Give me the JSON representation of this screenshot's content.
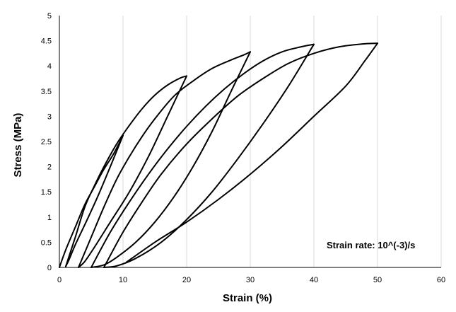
{
  "chart_data": {
    "type": "line",
    "title": "",
    "xlabel": "Strain (%)",
    "ylabel": "Stress (MPa)",
    "xlim": [
      0,
      60
    ],
    "ylim": [
      0,
      5
    ],
    "xticks": [
      "0",
      "10",
      "20",
      "30",
      "40",
      "50",
      "60"
    ],
    "yticks": [
      "0",
      "0.5",
      "1",
      "1.5",
      "2",
      "2.5",
      "3",
      "3.5",
      "4",
      "4.5",
      "5"
    ],
    "grid": {
      "vertical": true,
      "horizontal": false
    },
    "annotation": "Strain rate: 10^(-3)/s",
    "line_color": "#000000",
    "grid_color": "#d9d9d9",
    "series": [
      {
        "loading": [
          [
            0,
            0
          ],
          [
            1,
            0.35
          ],
          [
            2.5,
            0.8
          ],
          [
            4,
            1.25
          ],
          [
            5.5,
            1.6
          ],
          [
            7,
            1.95
          ],
          [
            8.5,
            2.25
          ],
          [
            10,
            2.62
          ]
        ],
        "unloading": [
          [
            10,
            2.62
          ],
          [
            8,
            2.0
          ],
          [
            6,
            1.4
          ],
          [
            4,
            0.85
          ],
          [
            2.5,
            0.45
          ],
          [
            1.5,
            0.15
          ],
          [
            1,
            0.02
          ]
        ]
      },
      {
        "loading": [
          [
            1,
            0.02
          ],
          [
            2.5,
            0.6
          ],
          [
            4,
            1.2
          ],
          [
            5.5,
            1.62
          ],
          [
            7,
            2.0
          ],
          [
            9,
            2.45
          ],
          [
            11,
            2.82
          ],
          [
            13,
            3.15
          ],
          [
            15,
            3.42
          ],
          [
            17,
            3.62
          ],
          [
            19,
            3.76
          ],
          [
            20,
            3.8
          ]
        ],
        "unloading": [
          [
            20,
            3.8
          ],
          [
            17,
            3.0
          ],
          [
            14,
            2.2
          ],
          [
            11,
            1.5
          ],
          [
            8,
            0.9
          ],
          [
            5.5,
            0.4
          ],
          [
            4,
            0.12
          ],
          [
            3,
            0
          ]
        ]
      },
      {
        "loading": [
          [
            3,
            0
          ],
          [
            5,
            0.6
          ],
          [
            7,
            1.2
          ],
          [
            9,
            1.75
          ],
          [
            11,
            2.2
          ],
          [
            13,
            2.6
          ],
          [
            15,
            2.95
          ],
          [
            18,
            3.4
          ],
          [
            21,
            3.7
          ],
          [
            24,
            3.95
          ],
          [
            27,
            4.12
          ],
          [
            29,
            4.22
          ],
          [
            30,
            4.28
          ]
        ],
        "unloading": [
          [
            30,
            4.28
          ],
          [
            27,
            3.5
          ],
          [
            24,
            2.7
          ],
          [
            21,
            2.0
          ],
          [
            18,
            1.4
          ],
          [
            15,
            0.9
          ],
          [
            12,
            0.5
          ],
          [
            9,
            0.2
          ],
          [
            7,
            0.05
          ],
          [
            5,
            0
          ]
        ]
      },
      {
        "loading": [
          [
            5,
            0
          ],
          [
            8,
            0.7
          ],
          [
            11,
            1.3
          ],
          [
            14,
            1.85
          ],
          [
            17,
            2.35
          ],
          [
            20,
            2.8
          ],
          [
            23,
            3.2
          ],
          [
            26,
            3.55
          ],
          [
            29,
            3.85
          ],
          [
            32,
            4.1
          ],
          [
            35,
            4.28
          ],
          [
            38,
            4.38
          ],
          [
            40,
            4.43
          ]
        ],
        "unloading": [
          [
            40,
            4.43
          ],
          [
            36,
            3.6
          ],
          [
            32,
            2.85
          ],
          [
            28,
            2.15
          ],
          [
            24,
            1.5
          ],
          [
            20,
            0.95
          ],
          [
            16,
            0.5
          ],
          [
            12,
            0.18
          ],
          [
            9,
            0.03
          ],
          [
            7,
            0
          ]
        ]
      },
      {
        "loading": [
          [
            7,
            0
          ],
          [
            10,
            0.7
          ],
          [
            13,
            1.3
          ],
          [
            16,
            1.85
          ],
          [
            20,
            2.45
          ],
          [
            24,
            2.95
          ],
          [
            28,
            3.4
          ],
          [
            32,
            3.75
          ],
          [
            36,
            4.05
          ],
          [
            40,
            4.25
          ],
          [
            44,
            4.38
          ],
          [
            48,
            4.44
          ],
          [
            50,
            4.45
          ]
        ],
        "unloading": [
          [
            50,
            4.45
          ],
          [
            48,
            4.1
          ],
          [
            45,
            3.6
          ],
          [
            40,
            3.0
          ],
          [
            35,
            2.4
          ],
          [
            30,
            1.85
          ],
          [
            25,
            1.35
          ],
          [
            20,
            0.9
          ],
          [
            15,
            0.5
          ],
          [
            10.5,
            0.1
          ]
        ]
      }
    ]
  }
}
